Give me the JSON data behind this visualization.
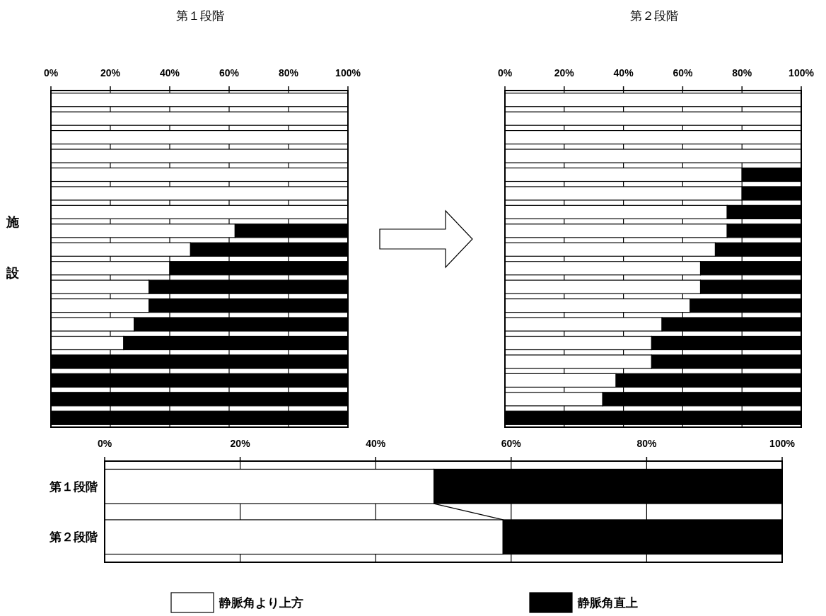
{
  "chart_data": [
    {
      "type": "bar",
      "orientation": "horizontal",
      "stacked": true,
      "title": "第１段階",
      "ylabel": "施設",
      "categories": [
        null,
        null,
        null,
        null,
        null,
        null,
        null,
        null,
        null,
        null,
        null,
        null,
        null,
        null,
        null,
        null,
        null,
        null
      ],
      "series": [
        {
          "color": "#ffffff",
          "values": [
            100,
            100,
            100,
            100,
            100,
            100,
            100,
            62,
            47,
            40,
            33,
            33,
            28,
            24.5,
            0,
            0,
            0,
            0
          ]
        },
        {
          "color": "#000000",
          "values": [
            0,
            0,
            0,
            0,
            0,
            0,
            0,
            38,
            53,
            60,
            67,
            67,
            72,
            75.5,
            100,
            100,
            100,
            100
          ]
        }
      ],
      "xlim": [
        0,
        100
      ],
      "xticks": [
        {
          "value": 0,
          "label": "0%"
        },
        {
          "value": 20,
          "label": "20%"
        },
        {
          "value": 40,
          "label": "40%"
        },
        {
          "value": 60,
          "label": "60%"
        },
        {
          "value": 80,
          "label": "80%"
        },
        {
          "value": 100,
          "label": "100%"
        }
      ],
      "grid": "x",
      "tick_labels": "x"
    },
    {
      "type": "bar",
      "orientation": "horizontal",
      "stacked": true,
      "title": "第２段階",
      "categories": [
        null,
        null,
        null,
        null,
        null,
        null,
        null,
        null,
        null,
        null,
        null,
        null,
        null,
        null,
        null,
        null,
        null,
        null
      ],
      "series": [
        {
          "color": "#ffffff",
          "values": [
            100,
            100,
            100,
            100,
            80,
            80,
            75,
            75,
            71,
            66,
            66,
            62.5,
            53,
            49.5,
            49.5,
            37.5,
            33,
            0
          ]
        },
        {
          "color": "#000000",
          "values": [
            0,
            0,
            0,
            0,
            20,
            20,
            25,
            25,
            29,
            34,
            34,
            37.5,
            47,
            50.5,
            50.5,
            62.5,
            67,
            100
          ]
        }
      ],
      "xlim": [
        0,
        100
      ],
      "xticks": [
        {
          "value": 0,
          "label": "0%"
        },
        {
          "value": 20,
          "label": "20%"
        },
        {
          "value": 40,
          "label": "40%"
        },
        {
          "value": 60,
          "label": "60%"
        },
        {
          "value": 80,
          "label": "80%"
        },
        {
          "value": 100,
          "label": "100%"
        }
      ],
      "grid": "x",
      "tick_labels": "x"
    },
    {
      "type": "bar",
      "orientation": "horizontal",
      "stacked": true,
      "categories": [
        "第１段階",
        "第２段階"
      ],
      "series": [
        {
          "name": "静脈角より上方",
          "color": "#ffffff",
          "values": [
            48.6,
            58.8
          ]
        },
        {
          "name": "静脈角直上",
          "color": "#000000",
          "values": [
            51.4,
            41.2
          ]
        }
      ],
      "xlim": [
        0,
        100
      ],
      "xticks": [
        {
          "value": 0,
          "label": "0%"
        },
        {
          "value": 20,
          "label": "20%"
        },
        {
          "value": 40,
          "label": "40%"
        },
        {
          "value": 60,
          "label": "60%"
        },
        {
          "value": 80,
          "label": "80%"
        },
        {
          "value": 100,
          "label": "100%"
        }
      ],
      "grid": "x",
      "legend": "bottom"
    }
  ]
}
